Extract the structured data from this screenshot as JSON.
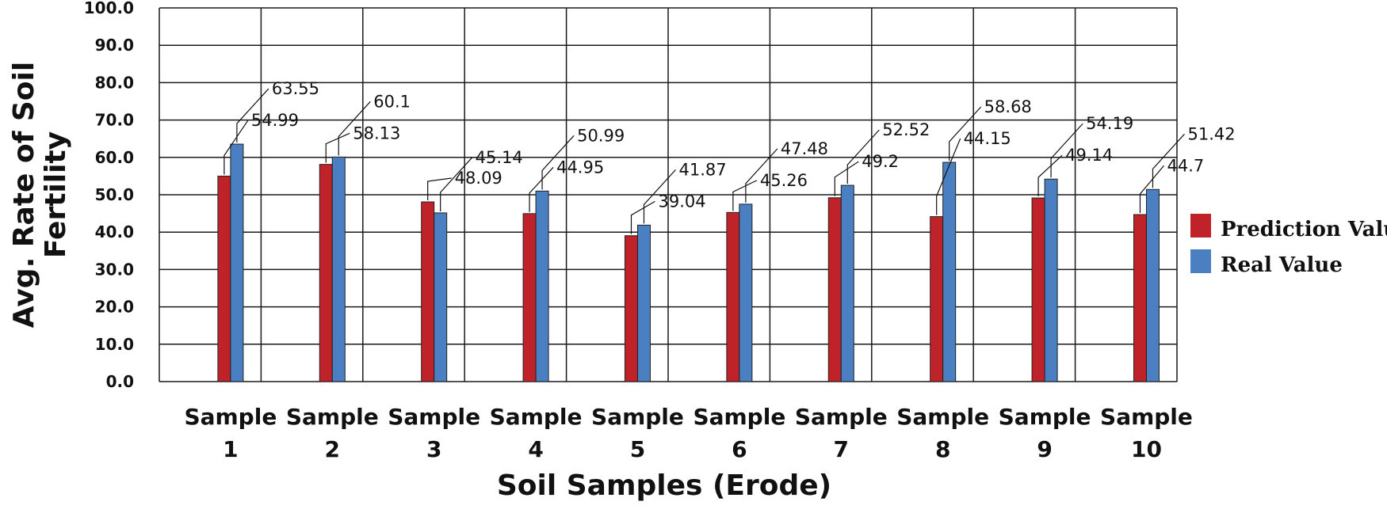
{
  "chart_data": {
    "type": "bar",
    "title": "",
    "xlabel": "Soil Samples (Erode)",
    "ylabel_lines": [
      "Avg. Rate of Soil",
      "Fertility"
    ],
    "ylim": [
      0,
      100
    ],
    "y_ticks": [
      "0.0",
      "10.0",
      "20.0",
      "30.0",
      "40.0",
      "50.0",
      "60.0",
      "70.0",
      "80.0",
      "90.0",
      "100.0"
    ],
    "categories": [
      [
        "Sample",
        "1"
      ],
      [
        "Sample",
        "2"
      ],
      [
        "Sample",
        "3"
      ],
      [
        "Sample",
        "4"
      ],
      [
        "Sample",
        "5"
      ],
      [
        "Sample",
        "6"
      ],
      [
        "Sample",
        "7"
      ],
      [
        "Sample",
        "8"
      ],
      [
        "Sample",
        "9"
      ],
      [
        "Sample",
        "10"
      ]
    ],
    "series": [
      {
        "name": "Prediction Value",
        "color": "#c0222a",
        "values": [
          54.99,
          58.13,
          48.09,
          44.95,
          39.04,
          45.26,
          49.2,
          44.15,
          49.14,
          44.7
        ],
        "labels": [
          "54.99",
          "58.13",
          "48.09",
          "44.95",
          "39.04",
          "45.26",
          "49.2",
          "44.15",
          "49.14",
          "44.7"
        ]
      },
      {
        "name": "Real Value",
        "color": "#4a7fc1",
        "values": [
          63.55,
          60.1,
          45.14,
          50.99,
          41.87,
          47.48,
          52.52,
          58.68,
          54.19,
          51.42
        ],
        "labels": [
          "63.55",
          "60.1",
          "45.14",
          "50.99",
          "41.87",
          "47.48",
          "52.52",
          "58.68",
          "54.19",
          "51.42"
        ]
      }
    ],
    "grid": true,
    "legend_position": "right"
  }
}
